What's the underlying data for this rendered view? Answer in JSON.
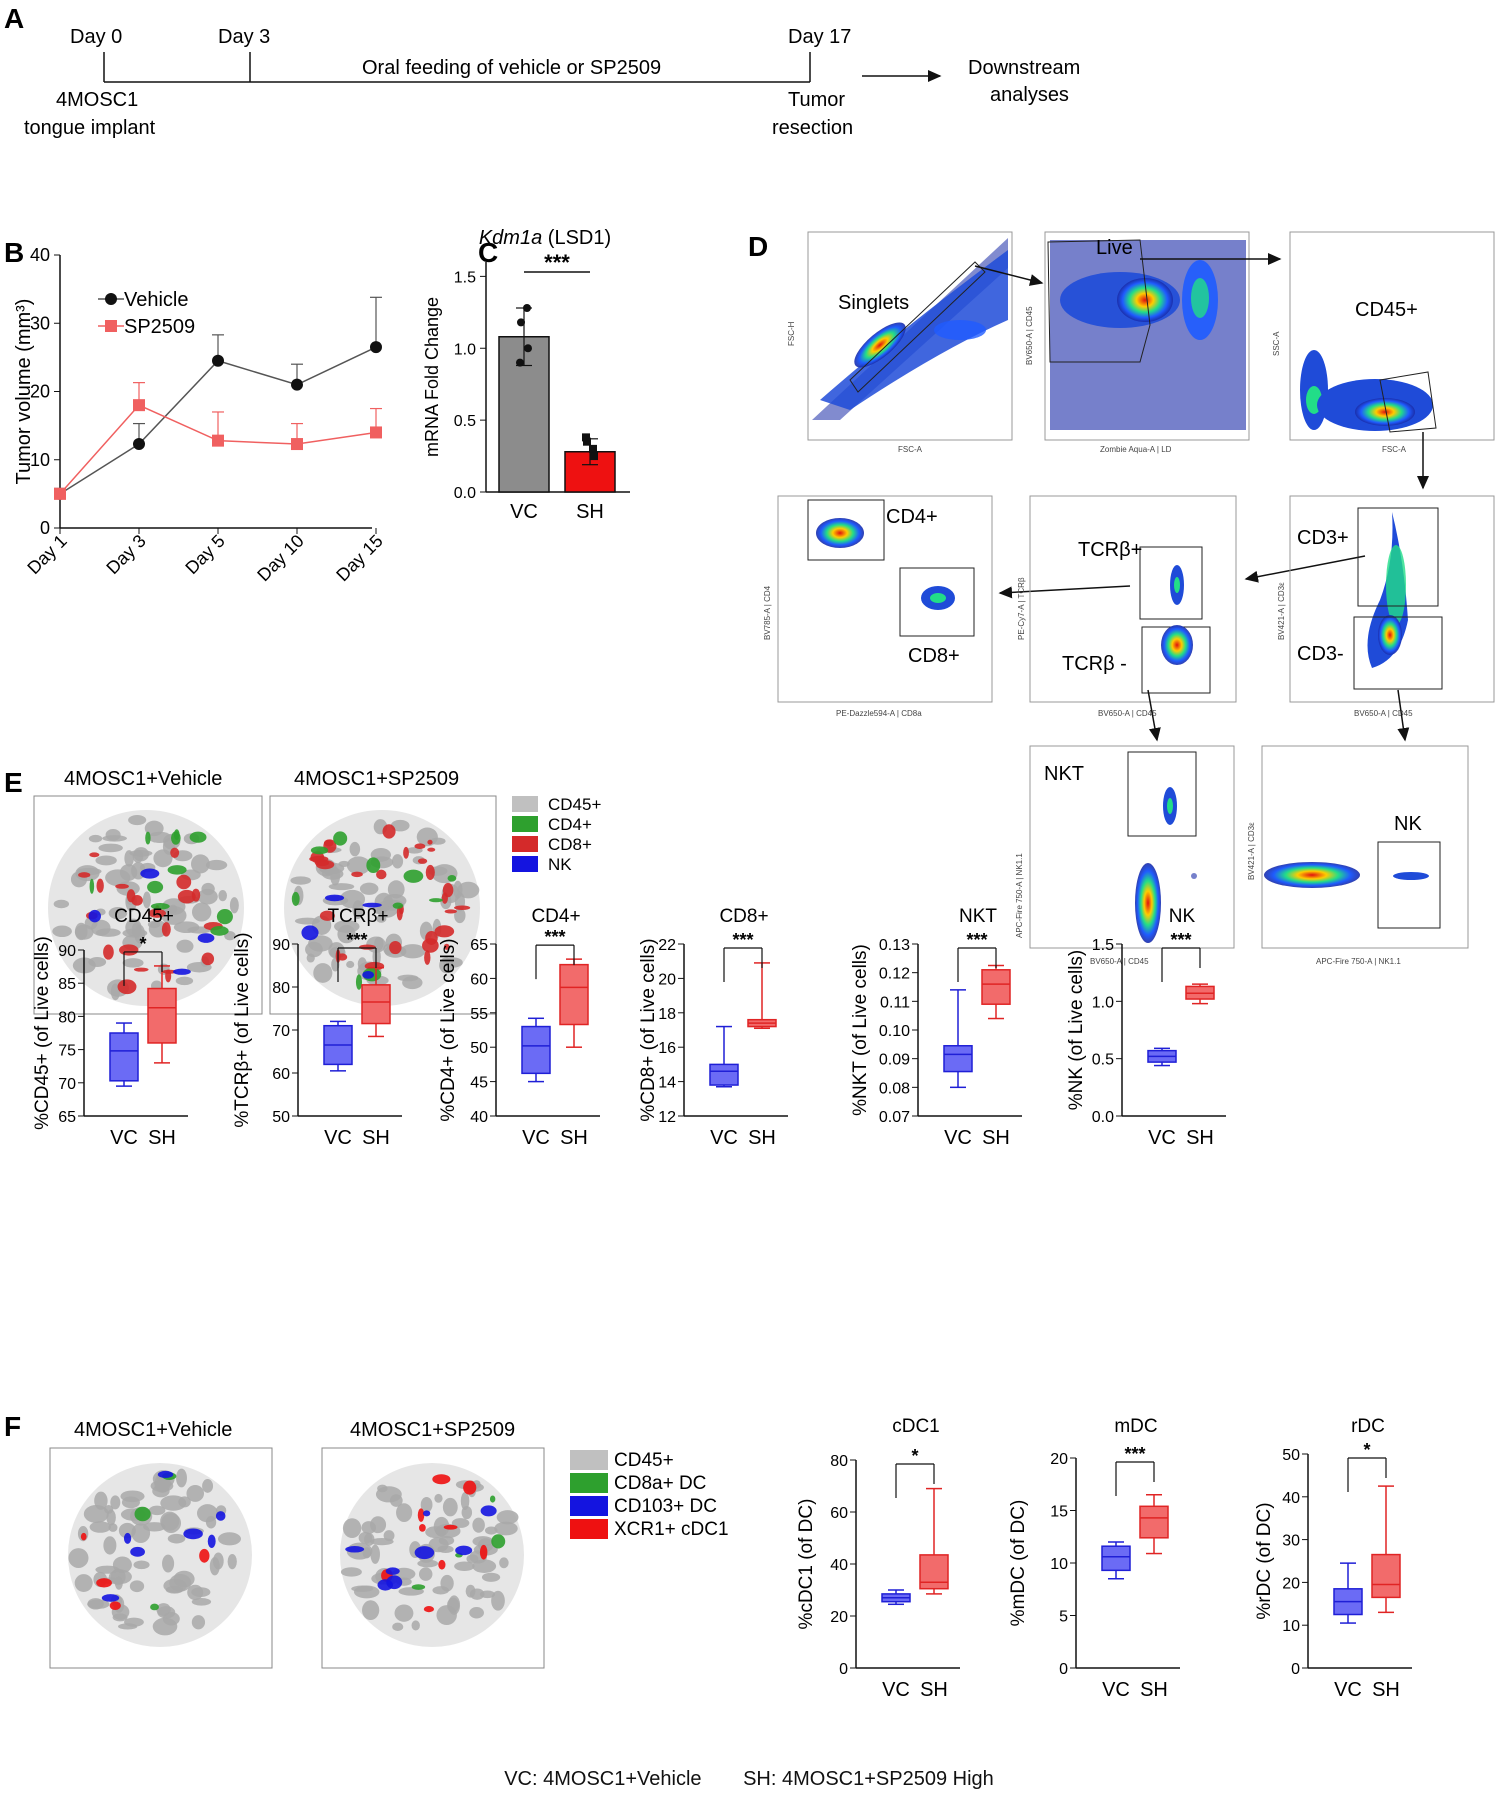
{
  "timeline": {
    "label": "A",
    "day0": "Day 0",
    "day3": "Day 3",
    "day17": "Day 17",
    "implant_line1": "4MOSC1",
    "implant_line2": "tongue implant",
    "feeding": "Oral feeding of vehicle or SP2509",
    "resection_line1": "Tumor",
    "resection_line2": "resection",
    "downstream_line1": "Downstream",
    "downstream_line2": "analyses"
  },
  "panel_labels": {
    "b": "B",
    "c": "C",
    "d": "D",
    "e": "E",
    "f": "F"
  },
  "colors": {
    "vehicle": "#111111",
    "sp2509": "#f06060",
    "vc_box": "#6b6bf5",
    "sh_box": "#f26b6b",
    "vc_stroke": "#1f1fd6",
    "sh_stroke": "#e02424",
    "gray": "#8c8c8c",
    "red_bar": "#ee1111",
    "cd45": "#c0c0c0",
    "cd4": "#2ea02e",
    "cd8": "#d42a2a",
    "nk": "#1414e0"
  },
  "tsne": {
    "e_left_title": "4MOSC1+Vehicle",
    "e_right_title": "4MOSC1+SP2509",
    "e_legend": [
      "CD45+",
      "CD4+",
      "CD8+",
      "NK"
    ],
    "f_left_title": "4MOSC1+Vehicle",
    "f_right_title": "4MOSC1+SP2509",
    "f_legend": [
      "CD45+",
      "CD8a+ DC",
      "CD103+ DC",
      "XCR1+ cDC1"
    ]
  },
  "gating": {
    "p1": {
      "gate": "Singlets",
      "ylab": "FSC-H",
      "xlab": "FSC-A"
    },
    "p2": {
      "gate": "Live",
      "ylab": "BV650-A | CD45",
      "xlab": "Zombie Aqua-A | LD"
    },
    "p3": {
      "gate": "CD45+",
      "ylab": "SSC-A",
      "xlab": "FSC-A"
    },
    "p4": {
      "gate1": "CD4+",
      "gate2": "CD8+",
      "ylab": "BV785-A | CD4",
      "xlab": "PE-Dazzle594-A | CD8a"
    },
    "p5": {
      "gate1": "TCRβ+",
      "gate2": "TCRβ -",
      "ylab": "PE-Cy7-A | TCRβ",
      "xlab": "BV650-A | CD45"
    },
    "p6": {
      "gate1": "CD3+",
      "gate2": "CD3-",
      "ylab": "BV421-A | CD3ε",
      "xlab": "BV650-A | CD45"
    },
    "p7": {
      "gate": "NKT",
      "ylab": "APC-Fire 750-A | NK1.1",
      "xlab": "BV650-A | CD45"
    },
    "p8": {
      "gate": "NK",
      "ylab": "BV421-A | CD3ε",
      "xlab": "APC-Fire 750-A | NK1.1"
    }
  },
  "footer": {
    "vc": "VC: 4MOSC1+Vehicle",
    "sh": "SH: 4MOSC1+SP2509 High"
  },
  "chart_data": [
    {
      "id": "B",
      "type": "line",
      "ylabel": "Tumor volume (mm³)",
      "xlabel": "",
      "categories": [
        "Day 1",
        "Day 3",
        "Day 5",
        "Day 10",
        "Day 15"
      ],
      "ylim": [
        0,
        40
      ],
      "yticks": [
        0,
        10,
        20,
        30,
        40
      ],
      "series": [
        {
          "name": "Vehicle",
          "values": [
            5,
            12.3,
            24.5,
            21,
            26.5
          ],
          "err": [
            0.8,
            3,
            3.8,
            3,
            7.3
          ]
        },
        {
          "name": "SP2509",
          "values": [
            5,
            18,
            12.8,
            12.3,
            14
          ],
          "err": [
            0.8,
            3.3,
            4.2,
            3,
            3.5
          ]
        }
      ]
    },
    {
      "id": "C",
      "type": "bar",
      "title": "(LSD1)",
      "title_gene": "Kdm1a",
      "ylabel": "mRNA Fold Change",
      "categories": [
        "VC",
        "SH"
      ],
      "values": [
        1.08,
        0.28
      ],
      "err": [
        0.2,
        0.09
      ],
      "ylim": [
        0,
        1.6
      ],
      "yticks": [
        "0.0",
        "0.5",
        "1.0",
        "1.5"
      ],
      "points": [
        [
          1.18,
          1.0,
          0.9,
          1.28
        ],
        [
          0.35,
          0.25,
          0.38,
          0.3
        ]
      ],
      "significance": "***"
    },
    {
      "id": "E1",
      "type": "box",
      "title": "CD45+",
      "ylabel": "%CD45+ (of Live cells)",
      "ylim": [
        65,
        90
      ],
      "yticks": [
        65,
        70,
        75,
        80,
        85,
        90
      ],
      "sig": "*",
      "categories": [
        "VC",
        "SH"
      ],
      "boxes": [
        {
          "min": 69.5,
          "q1": 70.3,
          "median": 74.8,
          "q3": 77.5,
          "max": 79
        },
        {
          "min": 73,
          "q1": 76,
          "median": 81.3,
          "q3": 84.2,
          "max": 87.6
        }
      ]
    },
    {
      "id": "E2",
      "type": "box",
      "title": "TCRβ+",
      "ylabel": "%TCRβ+ (of Live cells)",
      "ylim": [
        50,
        90
      ],
      "yticks": [
        50,
        60,
        70,
        80,
        90
      ],
      "sig": "***",
      "categories": [
        "VC",
        "SH"
      ],
      "boxes": [
        {
          "min": 60.5,
          "q1": 62,
          "median": 66.5,
          "q3": 71,
          "max": 72
        },
        {
          "min": 68.5,
          "q1": 71.5,
          "median": 76.5,
          "q3": 80.5,
          "max": 84.5
        }
      ]
    },
    {
      "id": "E3",
      "type": "box",
      "title": "CD4+",
      "ylabel": "%CD4+ (of Live cells)",
      "ylim": [
        40,
        65
      ],
      "yticks": [
        40,
        45,
        50,
        55,
        60,
        65
      ],
      "sig": "***",
      "categories": [
        "VC",
        "SH"
      ],
      "boxes": [
        {
          "min": 45,
          "q1": 46.2,
          "median": 50.2,
          "q3": 53,
          "max": 54.2
        },
        {
          "min": 50,
          "q1": 53.3,
          "median": 58.7,
          "q3": 62,
          "max": 62.8
        }
      ]
    },
    {
      "id": "E4",
      "type": "box",
      "title": "CD8+",
      "ylabel": "%CD8+ (of Live cells)",
      "ylim": [
        12,
        22
      ],
      "yticks": [
        12,
        14,
        16,
        18,
        20,
        22
      ],
      "sig": "***",
      "categories": [
        "VC",
        "SH"
      ],
      "boxes": [
        {
          "min": 13.7,
          "q1": 13.8,
          "median": 14.6,
          "q3": 15,
          "max": 17.2
        },
        {
          "min": 17.1,
          "q1": 17.2,
          "median": 17.4,
          "q3": 17.6,
          "max": 20.9
        }
      ]
    },
    {
      "id": "E5",
      "type": "box",
      "title": "NKT",
      "ylabel": "%NKT (of Live cells)",
      "ylim": [
        0.07,
        0.13
      ],
      "yticks": [
        "0.07",
        "0.08",
        "0.09",
        "0.10",
        "0.11",
        "0.12",
        "0.13"
      ],
      "sig": "***",
      "categories": [
        "VC",
        "SH"
      ],
      "boxes": [
        {
          "min": 0.08,
          "q1": 0.0855,
          "median": 0.0915,
          "q3": 0.0945,
          "max": 0.114
        },
        {
          "min": 0.104,
          "q1": 0.109,
          "median": 0.116,
          "q3": 0.121,
          "max": 0.1225
        }
      ]
    },
    {
      "id": "E6",
      "type": "box",
      "title": "NK",
      "ylabel": "%NK (of Live cells)",
      "ylim": [
        0,
        1.5
      ],
      "yticks": [
        "0.0",
        "0.5",
        "1.0",
        "1.5"
      ],
      "sig": "***",
      "categories": [
        "VC",
        "SH"
      ],
      "boxes": [
        {
          "min": 0.44,
          "q1": 0.47,
          "median": 0.52,
          "q3": 0.57,
          "max": 0.59
        },
        {
          "min": 0.98,
          "q1": 1.02,
          "median": 1.07,
          "q3": 1.13,
          "max": 1.15
        }
      ]
    },
    {
      "id": "F1",
      "type": "box",
      "title": "cDC1",
      "ylabel": "%cDC1 (of DC)",
      "ylim": [
        0,
        80
      ],
      "yticks": [
        0,
        20,
        40,
        60,
        80
      ],
      "sig": "*",
      "categories": [
        "VC",
        "SH"
      ],
      "boxes": [
        {
          "min": 24.5,
          "q1": 25.5,
          "median": 27,
          "q3": 28.5,
          "max": 30
        },
        {
          "min": 28.5,
          "q1": 30.5,
          "median": 33,
          "q3": 43.5,
          "max": 69
        }
      ]
    },
    {
      "id": "F2",
      "type": "box",
      "title": "mDC",
      "ylabel": "%mDC (of DC)",
      "ylim": [
        0,
        20
      ],
      "yticks": [
        0,
        5,
        10,
        15,
        20
      ],
      "sig": "***",
      "categories": [
        "VC",
        "SH"
      ],
      "boxes": [
        {
          "min": 8.5,
          "q1": 9.3,
          "median": 10.6,
          "q3": 11.6,
          "max": 12
        },
        {
          "min": 10.9,
          "q1": 12.4,
          "median": 14.3,
          "q3": 15.4,
          "max": 16.5
        }
      ]
    },
    {
      "id": "F3",
      "type": "box",
      "title": "rDC",
      "ylabel": "%rDC (of DC)",
      "ylim": [
        0,
        50
      ],
      "yticks": [
        0,
        10,
        20,
        30,
        40,
        50
      ],
      "sig": "*",
      "categories": [
        "VC",
        "SH"
      ],
      "boxes": [
        {
          "min": 10.5,
          "q1": 12.5,
          "median": 15.5,
          "q3": 18.5,
          "max": 24.5
        },
        {
          "min": 13,
          "q1": 16.5,
          "median": 19.5,
          "q3": 26.5,
          "max": 42.5
        }
      ]
    }
  ]
}
